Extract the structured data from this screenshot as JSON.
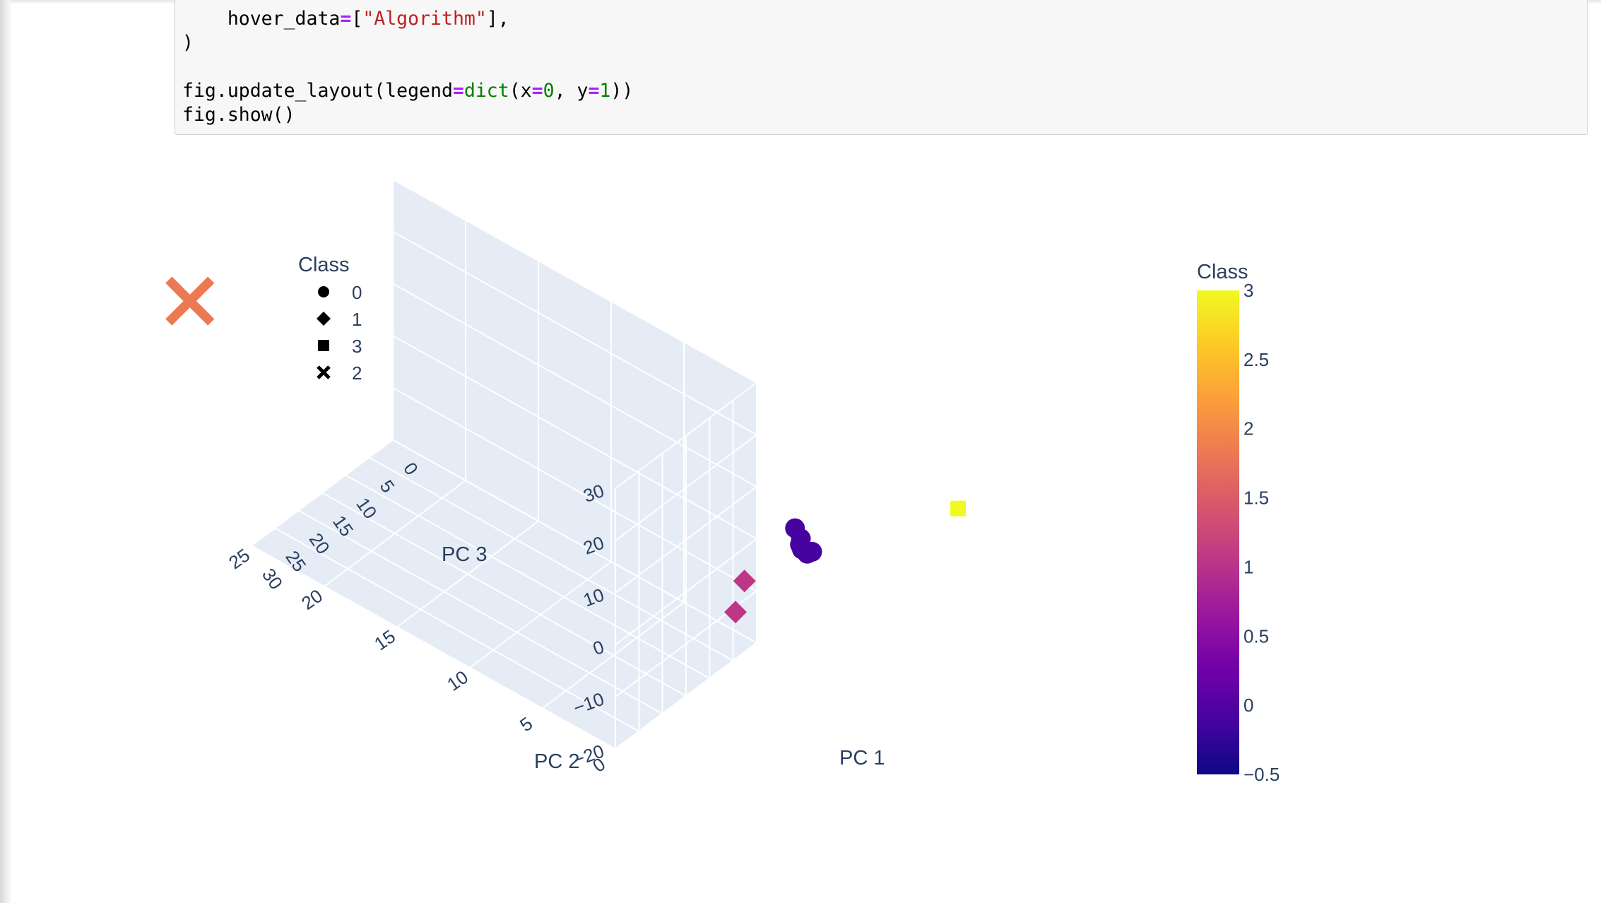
{
  "code": {
    "line1": "    hover_data=[\"Algorithm\"],",
    "line2": ")",
    "line3": "",
    "line4": "fig.update_layout(legend=dict(x=0, y=1))",
    "line5": "fig.show()"
  },
  "colors": {
    "scene_bg": "#e5ecf6",
    "grid": "#ffffff",
    "axis_text": "#2a3f5f",
    "colorscale": [
      "#0d0887",
      "#46039f",
      "#7201a8",
      "#9c179e",
      "#bd3786",
      "#d8576b",
      "#ed7953",
      "#fb9f3a",
      "#fdca26",
      "#f0f921"
    ]
  },
  "chart_data": {
    "type": "scatter3d",
    "axes": {
      "x": {
        "title": "PC 1",
        "ticks": [
          "0",
          "5",
          "10",
          "15",
          "20",
          "25",
          "30"
        ],
        "range": [
          0,
          30
        ]
      },
      "y": {
        "title": "PC 2",
        "ticks": [
          "0",
          "5",
          "10",
          "15",
          "20",
          "25"
        ],
        "range": [
          0,
          25
        ]
      },
      "z": {
        "title": "PC 3",
        "ticks": [
          "-20",
          "-10",
          "0",
          "10",
          "20",
          "30"
        ],
        "range": [
          -20,
          30
        ]
      }
    },
    "legend": {
      "title": "Class",
      "position": "top-left",
      "items": [
        {
          "label": "0",
          "symbol": "circle"
        },
        {
          "label": "1",
          "symbol": "diamond"
        },
        {
          "label": "3",
          "symbol": "square"
        },
        {
          "label": "2",
          "symbol": "x"
        }
      ]
    },
    "colorbar": {
      "title": "Class",
      "range": [
        -0.5,
        3
      ],
      "ticks": [
        "3",
        "2.5",
        "2",
        "1.5",
        "1",
        "0.5",
        "0",
        "−0.5"
      ]
    },
    "series": [
      {
        "name": "0",
        "symbol": "circle",
        "class_value": 0,
        "points": [
          [
            -3,
            -2,
            0
          ],
          [
            -3,
            -2.5,
            -1
          ],
          [
            -2.5,
            -3,
            0.5
          ],
          [
            -3.2,
            -2,
            1
          ],
          [
            -2.8,
            -2.2,
            -0.5
          ],
          [
            -3.5,
            -1.5,
            2
          ],
          [
            -2.6,
            -2.8,
            0
          ]
        ]
      },
      {
        "name": "1",
        "symbol": "diamond",
        "class_value": 1,
        "points": [
          [
            4.5,
            0,
            -11
          ],
          [
            -0.5,
            1,
            -10
          ]
        ]
      },
      {
        "name": "3",
        "symbol": "square",
        "class_value": 3,
        "points": [
          [
            0.5,
            -14,
            28
          ]
        ]
      },
      {
        "name": "2",
        "symbol": "x",
        "class_value": 2,
        "points": [
          [
            6,
            37,
            -8
          ]
        ]
      }
    ]
  }
}
